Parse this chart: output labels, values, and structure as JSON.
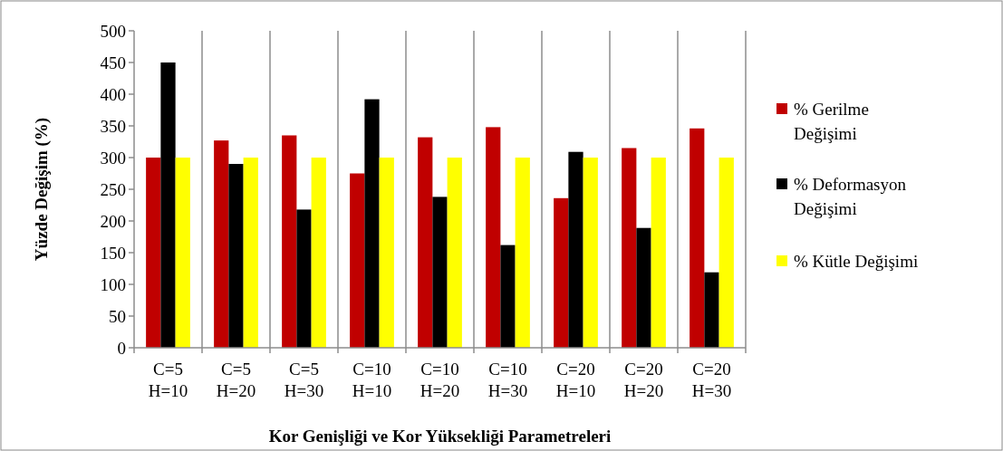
{
  "chart_data": {
    "type": "bar",
    "xlabel": "Kor Genişliği  ve Kor Yüksekliği  Parametreleri",
    "ylabel": "Yüzde Değişim (%)",
    "categories": [
      "C=5 H=10",
      "C=5 H=20",
      "C=5 H=30",
      "C=10 H=10",
      "C=10 H=20",
      "C=10 H=30",
      "C=20 H=10",
      "C=20 H=20",
      "C=20 H=30"
    ],
    "series": [
      {
        "name": "% Gerilme Değişimi",
        "color": "#c00000",
        "values": [
          300,
          327,
          335,
          275,
          332,
          348,
          236,
          315,
          346
        ]
      },
      {
        "name": "% Deformasyon Değişimi",
        "color": "#000000",
        "values": [
          450,
          290,
          218,
          392,
          238,
          162,
          309,
          189,
          119
        ]
      },
      {
        "name": "% Kütle Değişimi",
        "color": "#ffff00",
        "values": [
          300,
          300,
          300,
          300,
          300,
          300,
          300,
          300,
          300
        ]
      }
    ],
    "ylim": [
      0,
      500
    ],
    "yticks": [
      0,
      50,
      100,
      150,
      200,
      250,
      300,
      350,
      400,
      450,
      500
    ],
    "grid": "x",
    "legend": "right"
  }
}
